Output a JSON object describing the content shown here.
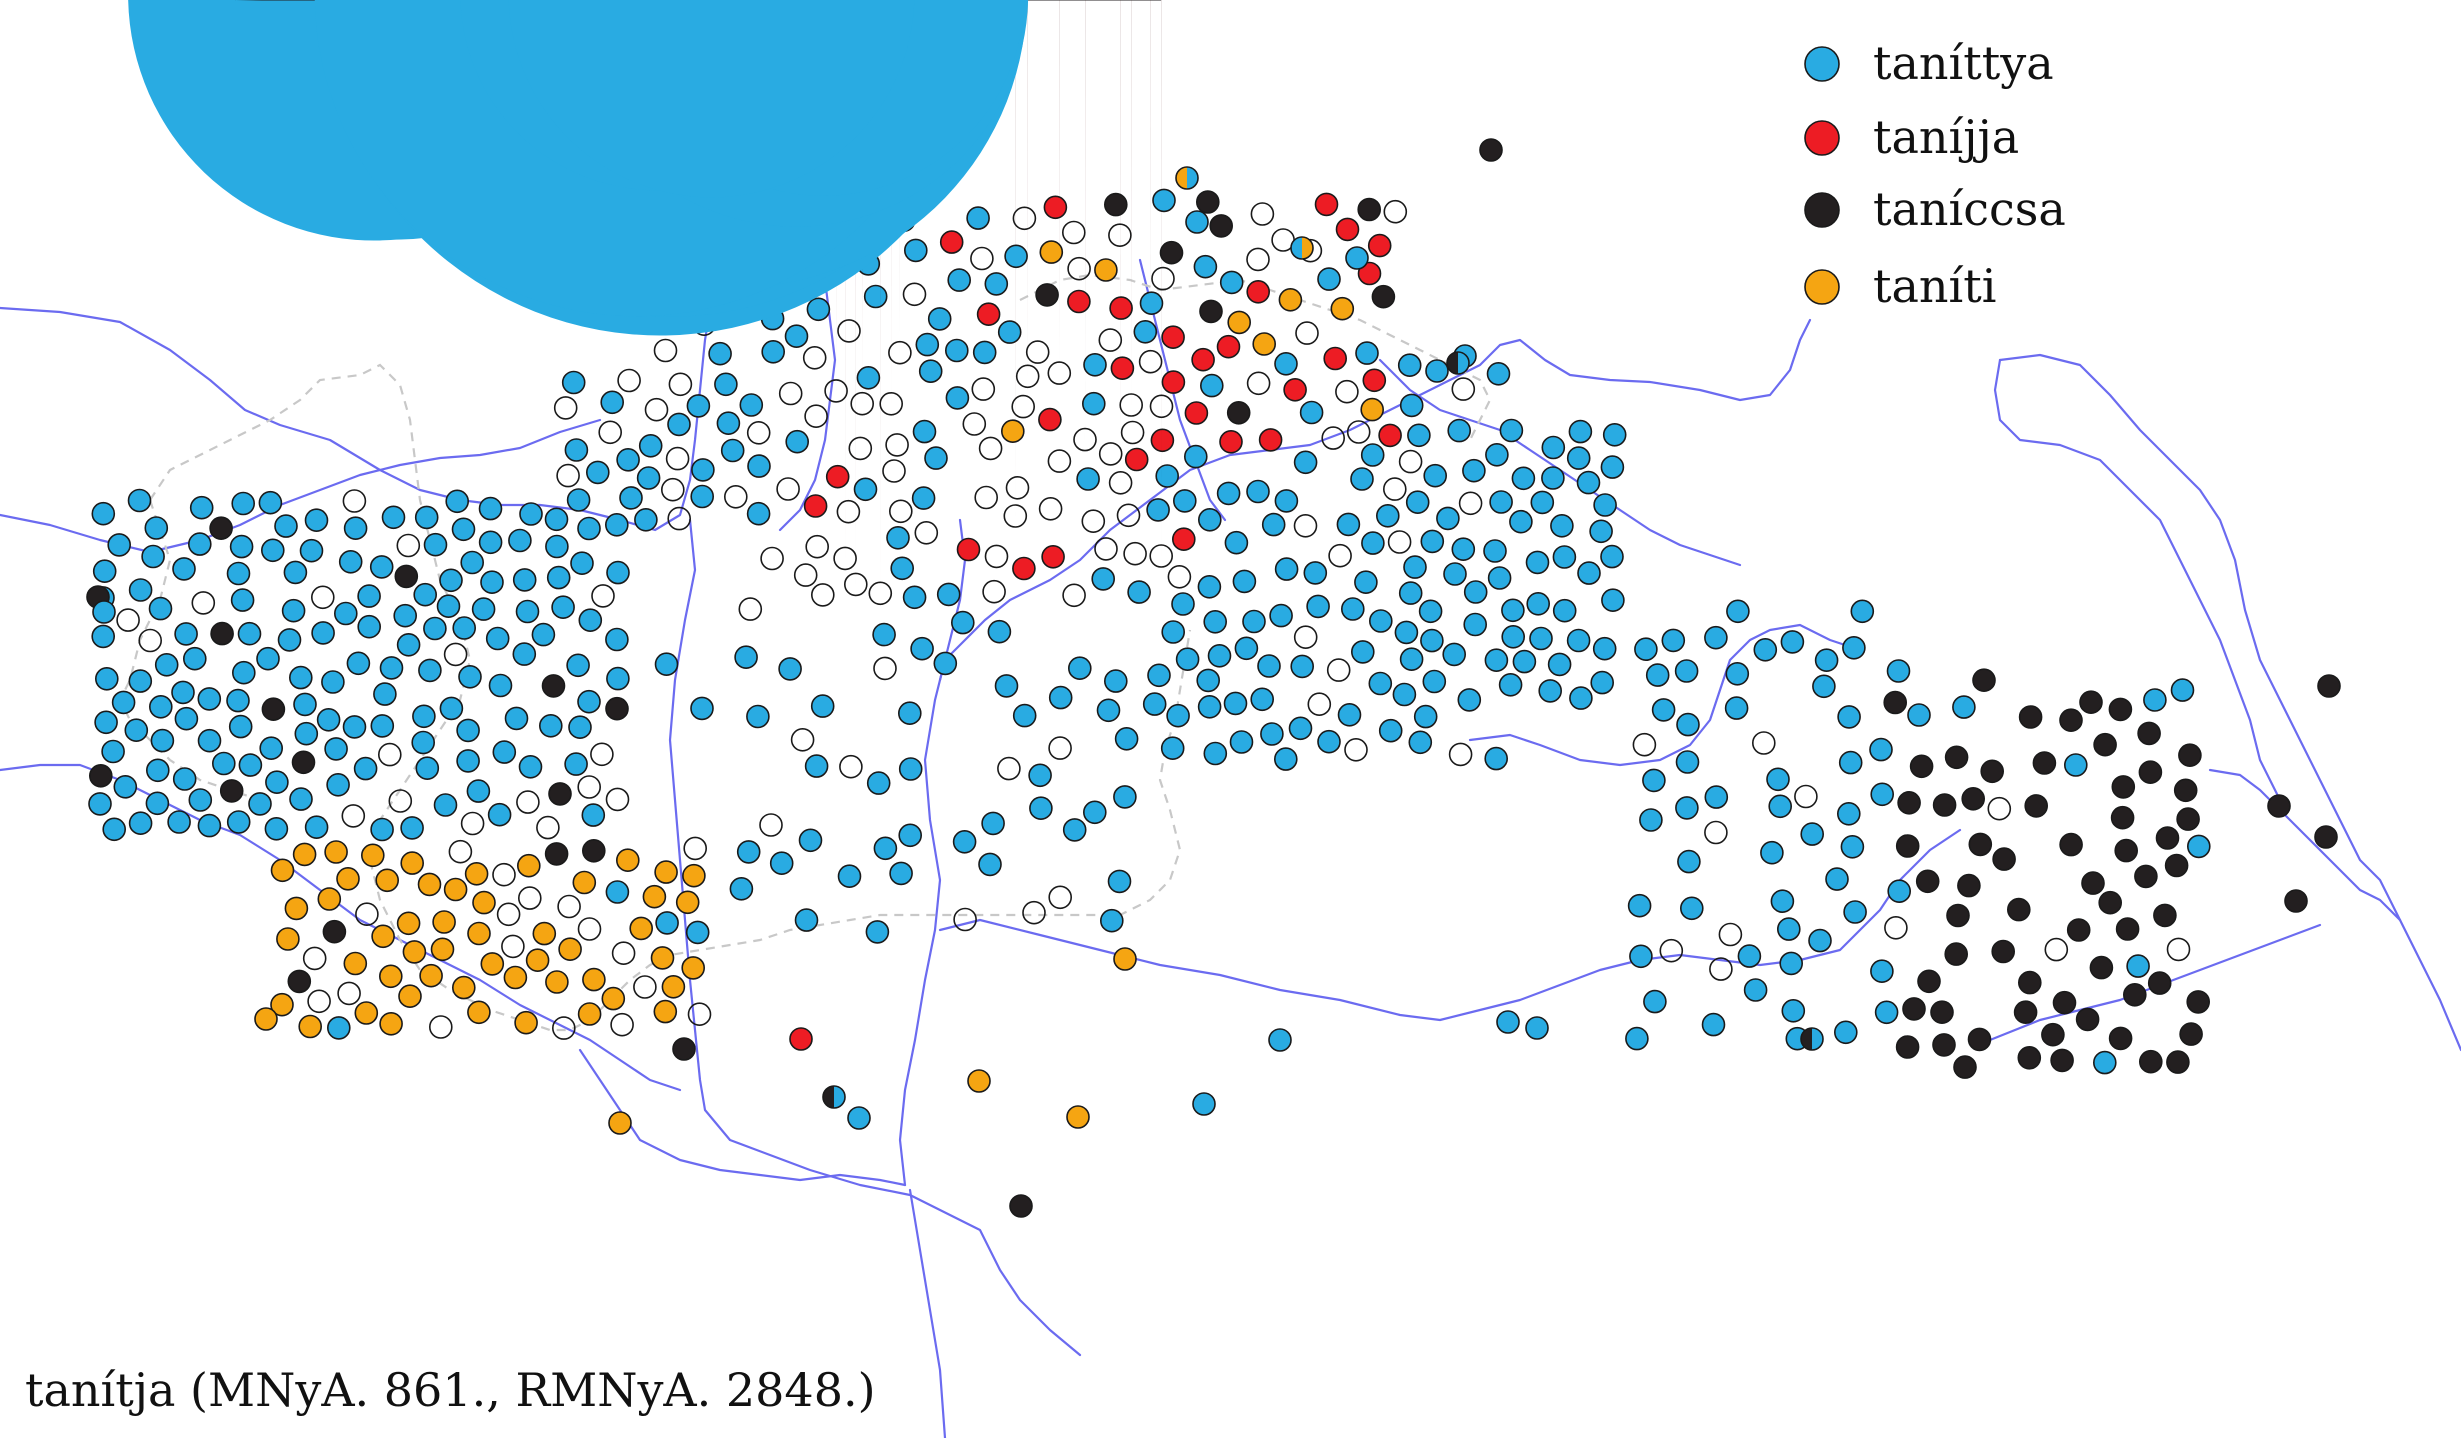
{
  "caption": "tanítja (MNyA. 861., RMNyA. 2848.)",
  "legend": [
    {
      "key": "a",
      "label": "taníttya",
      "color": "#29abe2"
    },
    {
      "key": "b",
      "label": "taníjja",
      "color": "#ed1c24"
    },
    {
      "key": "c",
      "label": "taníccsa",
      "color": "#231f20"
    },
    {
      "key": "d",
      "label": "taníti",
      "color": "#f5a512"
    }
  ]
}
